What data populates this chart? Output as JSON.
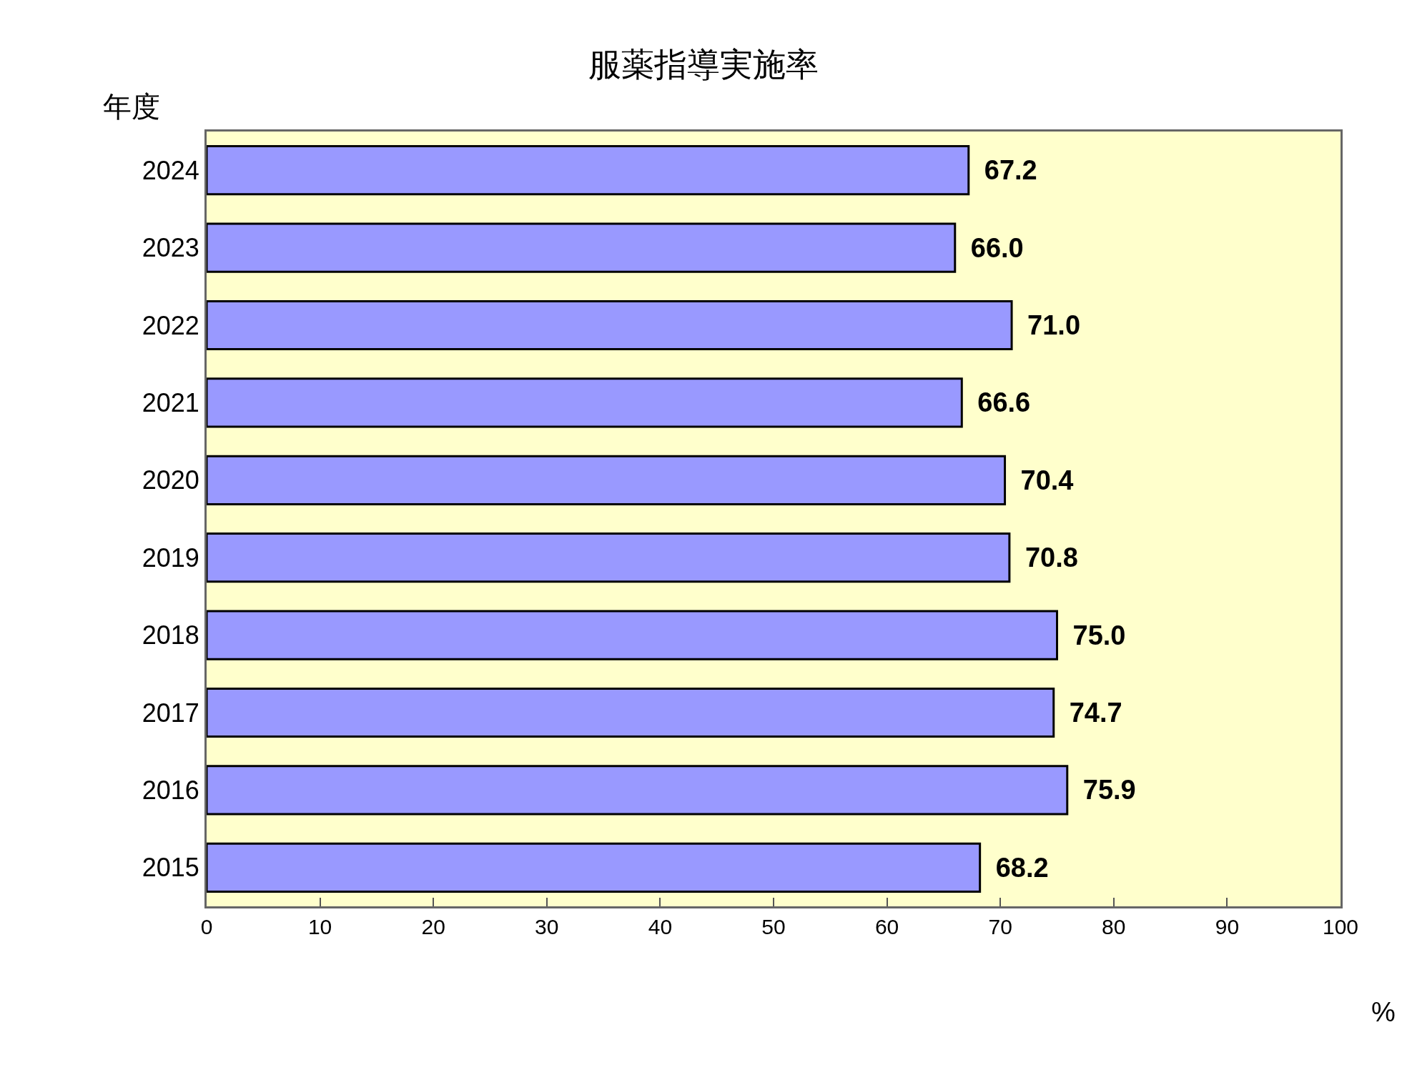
{
  "chart_data": {
    "type": "bar",
    "orientation": "horizontal",
    "title": "服薬指導実施率",
    "xlabel": "%",
    "ylabel": "年度",
    "categories": [
      "2024",
      "2023",
      "2022",
      "2021",
      "2020",
      "2019",
      "2018",
      "2017",
      "2016",
      "2015"
    ],
    "values": [
      67.2,
      66.0,
      71.0,
      66.6,
      70.4,
      70.8,
      75.0,
      74.7,
      75.9,
      68.2
    ],
    "value_labels": [
      "67.2",
      "66.0",
      "71.0",
      "66.6",
      "70.4",
      "70.8",
      "75.0",
      "74.7",
      "75.9",
      "68.2"
    ],
    "color": "#9999ff",
    "xlim": [
      0,
      100
    ],
    "xticks": [
      0,
      10,
      20,
      30,
      40,
      50,
      60,
      70,
      80,
      90,
      100
    ],
    "grid": false
  }
}
